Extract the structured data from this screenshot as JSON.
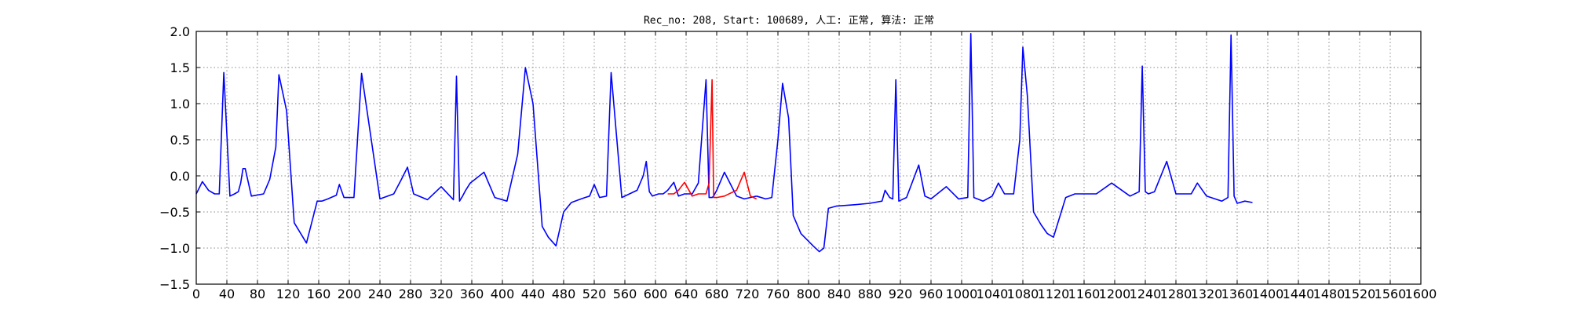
{
  "chart_data": {
    "type": "line",
    "title": "Rec_no: 208, Start: 100689, 人工: 正常, 算法: 正常",
    "xlabel": "",
    "ylabel": "",
    "xlim": [
      0,
      1600
    ],
    "ylim": [
      -1.5,
      2.0
    ],
    "grid": true,
    "y_ticks": [
      -1.5,
      -1.0,
      -0.5,
      0.0,
      0.5,
      1.0,
      1.5,
      2.0
    ],
    "y_tick_labels": [
      "−1.5",
      "−1.0",
      "−0.5",
      "0.0",
      "0.5",
      "1.0",
      "1.5",
      "2.0"
    ],
    "x_ticks": [
      0,
      40,
      80,
      120,
      160,
      200,
      240,
      280,
      320,
      360,
      400,
      440,
      480,
      520,
      560,
      600,
      640,
      680,
      720,
      760,
      800,
      840,
      880,
      920,
      960,
      1000,
      1040,
      1080,
      1120,
      1160,
      1200,
      1240,
      1280,
      1320,
      1360,
      1400,
      1440,
      1480,
      1520,
      1560,
      1600
    ],
    "x_tick_labels": [
      "0",
      "40",
      "80",
      "120",
      "160",
      "200",
      "240",
      "280",
      "320",
      "360",
      "400",
      "440",
      "480",
      "520",
      "560",
      "600",
      "640",
      "680",
      "720",
      "760",
      "800",
      "840",
      "880",
      "920",
      "960",
      "1000",
      "1040",
      "1080",
      "1120",
      "1160",
      "1200",
      "1240",
      "1280",
      "1320",
      "1360",
      "1400",
      "1440",
      "1480",
      "1520",
      "1560",
      "1600"
    ],
    "colors": {
      "signal": "#0000ff",
      "highlight": "#ff0000"
    },
    "series": [
      {
        "color": "#0000ff",
        "x": [
          0,
          8,
          16,
          24,
          30,
          36,
          44,
          50,
          55,
          58,
          61,
          64,
          72,
          88,
          96,
          104,
          108,
          118,
          128,
          144,
          152,
          158,
          164,
          172,
          176,
          183,
          187,
          193,
          206,
          216,
          240,
          258,
          268,
          276,
          284,
          302,
          320,
          336,
          340,
          344,
          348,
          352,
          358,
          376,
          390,
          406,
          420,
          430,
          440,
          452,
          460,
          470,
          480,
          490,
          500,
          508,
          514,
          520,
          527,
          536,
          542,
          556,
          576,
          584,
          588,
          592,
          596,
          604,
          610,
          616,
          624,
          630,
          638,
          648,
          656,
          666,
          670,
          674,
          676,
          680,
          690,
          706,
          716,
          724,
          732
        ],
        "y": [
          -0.25,
          -0.08,
          -0.2,
          -0.25,
          -0.25,
          1.43,
          -0.28,
          -0.25,
          -0.22,
          -0.1,
          0.1,
          0.1,
          -0.28,
          -0.25,
          -0.05,
          0.4,
          1.4,
          0.9,
          -0.65,
          -0.93,
          -0.6,
          -0.35,
          -0.35,
          -0.32,
          -0.3,
          -0.27,
          -0.12,
          -0.3,
          -0.3,
          1.42,
          -0.32,
          -0.25,
          -0.05,
          0.12,
          -0.25,
          -0.33,
          -0.15,
          -0.33,
          1.38,
          -0.35,
          -0.28,
          -0.2,
          -0.1,
          0.05,
          -0.3,
          -0.35,
          0.3,
          1.5,
          1.0,
          -0.7,
          -0.85,
          -0.97,
          -0.5,
          -0.37,
          -0.33,
          -0.3,
          -0.28,
          -0.12,
          -0.3,
          -0.28,
          1.43,
          -0.3,
          -0.2,
          0.0,
          0.2,
          -0.22,
          -0.28,
          -0.25,
          -0.25,
          -0.2,
          -0.09,
          -0.28,
          -0.25,
          -0.25,
          -0.1,
          1.33,
          -0.3,
          -0.3,
          -0.28,
          -0.2,
          0.05,
          -0.28,
          -0.32,
          -0.3,
          -0.28
        ]
      },
      {
        "color": "#ff0000",
        "x": [
          616,
          624,
          630,
          638,
          648,
          656,
          666,
          670,
          674,
          676,
          680,
          690,
          706,
          716,
          724,
          732
        ],
        "y": [
          -0.25,
          -0.25,
          -0.2,
          -0.09,
          -0.28,
          -0.25,
          -0.25,
          -0.1,
          1.33,
          -0.3,
          -0.3,
          -0.28,
          -0.2,
          0.05,
          -0.28,
          -0.32
        ]
      },
      {
        "color": "#0000ff",
        "x": [
          732,
          744,
          752,
          760,
          766,
          774,
          780,
          790,
          806,
          814,
          820,
          826,
          836,
          860,
          880,
          896,
          900,
          906,
          910,
          914,
          918,
          928,
          944,
          952,
          960,
          980,
          996,
          1008,
          1012,
          1016,
          1028,
          1040,
          1048,
          1056,
          1068,
          1076,
          1080,
          1086,
          1094,
          1104,
          1112,
          1120,
          1136,
          1148,
          1160,
          1168,
          1176,
          1196,
          1220,
          1232,
          1236,
          1240,
          1244,
          1252,
          1268,
          1280,
          1300,
          1308,
          1320,
          1340,
          1348,
          1352,
          1356,
          1360,
          1370,
          1380
        ],
        "y": [
          -0.28,
          -0.32,
          -0.3,
          0.5,
          1.28,
          0.8,
          -0.55,
          -0.8,
          -0.97,
          -1.05,
          -1.0,
          -0.45,
          -0.42,
          -0.4,
          -0.38,
          -0.35,
          -0.2,
          -0.3,
          -0.32,
          1.33,
          -0.35,
          -0.3,
          0.15,
          -0.28,
          -0.32,
          -0.15,
          -0.32,
          -0.3,
          1.97,
          -0.3,
          -0.35,
          -0.28,
          -0.1,
          -0.25,
          -0.25,
          0.5,
          1.78,
          1.1,
          -0.5,
          -0.68,
          -0.8,
          -0.85,
          -0.3,
          -0.25,
          -0.25,
          -0.25,
          -0.25,
          -0.1,
          -0.28,
          -0.22,
          1.52,
          -0.22,
          -0.25,
          -0.22,
          0.2,
          -0.25,
          -0.25,
          -0.1,
          -0.28,
          -0.35,
          -0.3,
          1.95,
          -0.28,
          -0.38,
          -0.35,
          -0.37
        ]
      }
    ]
  }
}
